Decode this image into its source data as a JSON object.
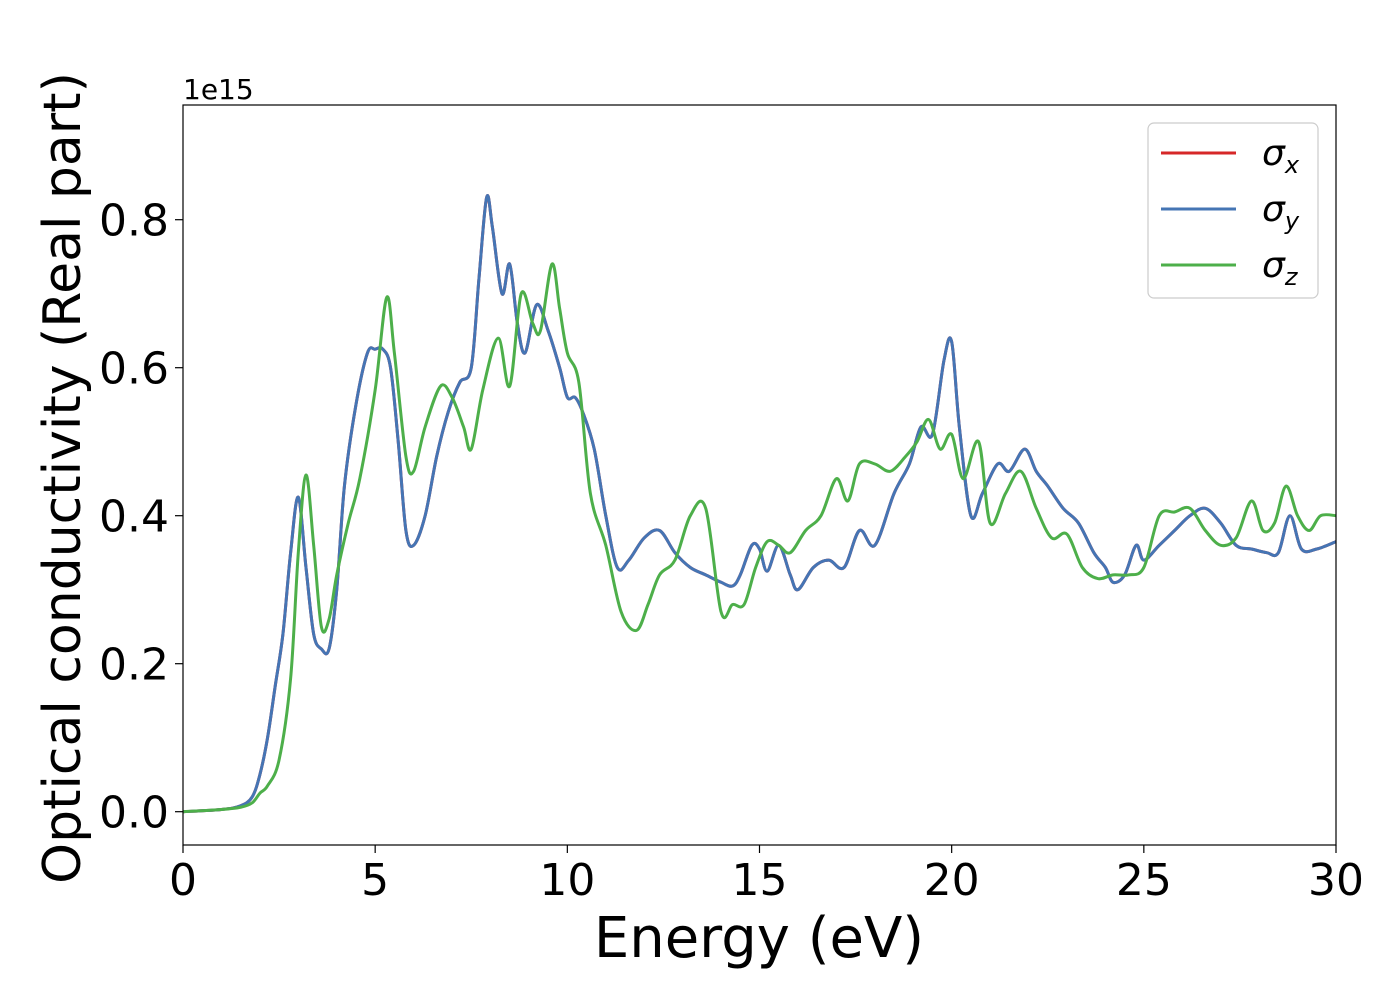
{
  "chart_data": {
    "type": "line",
    "title": "",
    "xlabel": "Energy (eV)",
    "ylabel": "Optical conductivity (Real part)",
    "y_scale_label": "1e15",
    "xlim": [
      0,
      30
    ],
    "ylim": [
      -0.045,
      0.955
    ],
    "xticks": [
      0,
      5,
      10,
      15,
      20,
      25,
      30
    ],
    "xtick_labels": [
      "0",
      "5",
      "10",
      "15",
      "20",
      "25",
      "30"
    ],
    "yticks": [
      0.0,
      0.2,
      0.4,
      0.6,
      0.8
    ],
    "ytick_labels": [
      "0.0",
      "0.2",
      "0.4",
      "0.6",
      "0.8"
    ],
    "grid": false,
    "legend_position": "top-right",
    "series": [
      {
        "name": "σ_x",
        "legend_symbol": "σ",
        "legend_sub": "x",
        "color": "#d62728",
        "x": [
          0,
          1,
          1.5,
          1.8,
          2.0,
          2.2,
          2.4,
          2.6,
          2.8,
          3.0,
          3.2,
          3.4,
          3.6,
          3.8,
          4.0,
          4.2,
          4.5,
          4.8,
          5.0,
          5.2,
          5.4,
          5.6,
          5.8,
          6.0,
          6.3,
          6.6,
          6.9,
          7.2,
          7.5,
          7.7,
          7.9,
          8.05,
          8.3,
          8.5,
          8.7,
          8.9,
          9.2,
          9.5,
          9.8,
          10.0,
          10.2,
          10.4,
          10.7,
          11.0,
          11.3,
          11.6,
          12.0,
          12.4,
          12.8,
          13.2,
          13.6,
          14.0,
          14.3,
          14.5,
          14.8,
          15.0,
          15.2,
          15.5,
          15.8,
          16.0,
          16.4,
          16.8,
          17.2,
          17.6,
          18.0,
          18.5,
          18.9,
          19.2,
          19.5,
          19.8,
          20.0,
          20.2,
          20.5,
          20.8,
          21.2,
          21.5,
          21.9,
          22.2,
          22.5,
          22.9,
          23.3,
          23.7,
          24.0,
          24.2,
          24.5,
          24.8,
          25.0,
          25.4,
          25.8,
          26.2,
          26.6,
          27.0,
          27.4,
          27.8,
          28.2,
          28.5,
          28.8,
          29.1,
          29.5,
          30.0
        ],
        "y": [
          0,
          0.003,
          0.008,
          0.02,
          0.05,
          0.1,
          0.17,
          0.24,
          0.35,
          0.425,
          0.33,
          0.24,
          0.22,
          0.22,
          0.3,
          0.44,
          0.55,
          0.62,
          0.625,
          0.625,
          0.6,
          0.5,
          0.38,
          0.36,
          0.4,
          0.48,
          0.54,
          0.58,
          0.6,
          0.72,
          0.83,
          0.79,
          0.7,
          0.74,
          0.66,
          0.62,
          0.685,
          0.65,
          0.6,
          0.56,
          0.56,
          0.54,
          0.49,
          0.4,
          0.33,
          0.34,
          0.37,
          0.38,
          0.35,
          0.33,
          0.32,
          0.31,
          0.305,
          0.32,
          0.36,
          0.355,
          0.325,
          0.36,
          0.32,
          0.3,
          0.33,
          0.34,
          0.33,
          0.38,
          0.36,
          0.43,
          0.47,
          0.52,
          0.51,
          0.61,
          0.635,
          0.52,
          0.4,
          0.43,
          0.47,
          0.46,
          0.49,
          0.46,
          0.44,
          0.41,
          0.39,
          0.35,
          0.33,
          0.31,
          0.32,
          0.36,
          0.34,
          0.36,
          0.38,
          0.4,
          0.41,
          0.39,
          0.36,
          0.355,
          0.35,
          0.35,
          0.4,
          0.355,
          0.355,
          0.365
        ]
      },
      {
        "name": "σ_y",
        "legend_symbol": "σ",
        "legend_sub": "y",
        "color": "#4575b4",
        "x": [
          0,
          1,
          1.5,
          1.8,
          2.0,
          2.2,
          2.4,
          2.6,
          2.8,
          3.0,
          3.2,
          3.4,
          3.6,
          3.8,
          4.0,
          4.2,
          4.5,
          4.8,
          5.0,
          5.2,
          5.4,
          5.6,
          5.8,
          6.0,
          6.3,
          6.6,
          6.9,
          7.2,
          7.5,
          7.7,
          7.9,
          8.05,
          8.3,
          8.5,
          8.7,
          8.9,
          9.2,
          9.5,
          9.8,
          10.0,
          10.2,
          10.4,
          10.7,
          11.0,
          11.3,
          11.6,
          12.0,
          12.4,
          12.8,
          13.2,
          13.6,
          14.0,
          14.3,
          14.5,
          14.8,
          15.0,
          15.2,
          15.5,
          15.8,
          16.0,
          16.4,
          16.8,
          17.2,
          17.6,
          18.0,
          18.5,
          18.9,
          19.2,
          19.5,
          19.8,
          20.0,
          20.2,
          20.5,
          20.8,
          21.2,
          21.5,
          21.9,
          22.2,
          22.5,
          22.9,
          23.3,
          23.7,
          24.0,
          24.2,
          24.5,
          24.8,
          25.0,
          25.4,
          25.8,
          26.2,
          26.6,
          27.0,
          27.4,
          27.8,
          28.2,
          28.5,
          28.8,
          29.1,
          29.5,
          30.0
        ],
        "y": [
          0,
          0.003,
          0.008,
          0.02,
          0.05,
          0.1,
          0.17,
          0.24,
          0.35,
          0.425,
          0.33,
          0.24,
          0.22,
          0.22,
          0.3,
          0.44,
          0.55,
          0.62,
          0.625,
          0.625,
          0.6,
          0.5,
          0.38,
          0.36,
          0.4,
          0.48,
          0.54,
          0.58,
          0.6,
          0.72,
          0.83,
          0.79,
          0.7,
          0.74,
          0.66,
          0.62,
          0.685,
          0.65,
          0.6,
          0.56,
          0.56,
          0.54,
          0.49,
          0.4,
          0.33,
          0.34,
          0.37,
          0.38,
          0.35,
          0.33,
          0.32,
          0.31,
          0.305,
          0.32,
          0.36,
          0.355,
          0.325,
          0.36,
          0.32,
          0.3,
          0.33,
          0.34,
          0.33,
          0.38,
          0.36,
          0.43,
          0.47,
          0.52,
          0.51,
          0.61,
          0.635,
          0.52,
          0.4,
          0.43,
          0.47,
          0.46,
          0.49,
          0.46,
          0.44,
          0.41,
          0.39,
          0.35,
          0.33,
          0.31,
          0.32,
          0.36,
          0.34,
          0.36,
          0.38,
          0.4,
          0.41,
          0.39,
          0.36,
          0.355,
          0.35,
          0.35,
          0.4,
          0.355,
          0.355,
          0.365
        ]
      },
      {
        "name": "σ_z",
        "legend_symbol": "σ",
        "legend_sub": "z",
        "color": "#4daf4a",
        "x": [
          0,
          1,
          1.5,
          1.8,
          2.0,
          2.2,
          2.5,
          2.8,
          3.0,
          3.2,
          3.4,
          3.6,
          3.8,
          4.0,
          4.3,
          4.6,
          5.0,
          5.3,
          5.5,
          5.8,
          6.0,
          6.3,
          6.7,
          7.0,
          7.3,
          7.5,
          7.8,
          8.2,
          8.5,
          8.8,
          9.1,
          9.3,
          9.6,
          9.8,
          10.0,
          10.3,
          10.6,
          11.0,
          11.4,
          11.8,
          12.1,
          12.4,
          12.8,
          13.2,
          13.6,
          14.0,
          14.3,
          14.6,
          14.9,
          15.2,
          15.5,
          15.8,
          16.2,
          16.6,
          17.0,
          17.3,
          17.6,
          18.0,
          18.4,
          18.8,
          19.1,
          19.4,
          19.7,
          20.0,
          20.3,
          20.7,
          21.0,
          21.4,
          21.8,
          22.2,
          22.6,
          23.0,
          23.4,
          23.8,
          24.2,
          24.6,
          25.0,
          25.4,
          25.8,
          26.2,
          26.6,
          27.0,
          27.4,
          27.8,
          28.1,
          28.4,
          28.7,
          29.0,
          29.3,
          29.6,
          30.0
        ],
        "y": [
          0,
          0.003,
          0.006,
          0.012,
          0.025,
          0.035,
          0.07,
          0.18,
          0.35,
          0.455,
          0.36,
          0.25,
          0.26,
          0.32,
          0.39,
          0.45,
          0.57,
          0.695,
          0.62,
          0.48,
          0.46,
          0.52,
          0.575,
          0.56,
          0.52,
          0.49,
          0.57,
          0.64,
          0.575,
          0.7,
          0.66,
          0.65,
          0.74,
          0.68,
          0.62,
          0.58,
          0.43,
          0.36,
          0.27,
          0.245,
          0.28,
          0.32,
          0.34,
          0.4,
          0.41,
          0.27,
          0.28,
          0.28,
          0.33,
          0.365,
          0.36,
          0.35,
          0.38,
          0.4,
          0.45,
          0.42,
          0.47,
          0.47,
          0.46,
          0.48,
          0.5,
          0.53,
          0.49,
          0.51,
          0.45,
          0.5,
          0.39,
          0.43,
          0.46,
          0.41,
          0.37,
          0.375,
          0.33,
          0.315,
          0.32,
          0.32,
          0.33,
          0.4,
          0.405,
          0.41,
          0.38,
          0.36,
          0.37,
          0.42,
          0.38,
          0.39,
          0.44,
          0.4,
          0.38,
          0.4,
          0.4
        ]
      }
    ]
  }
}
